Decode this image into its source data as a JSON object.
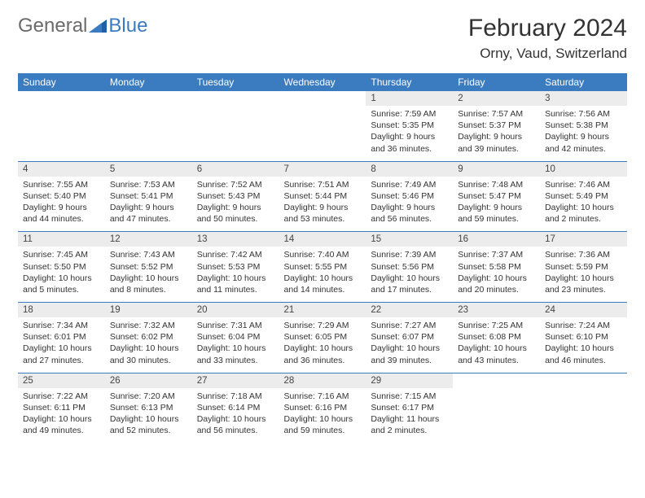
{
  "logo": {
    "text1": "General",
    "text2": "Blue"
  },
  "title": "February 2024",
  "location": "Orny, Vaud, Switzerland",
  "colors": {
    "header_bg": "#3b7bbf",
    "header_text": "#ffffff",
    "daynum_bg": "#ececec",
    "text": "#333333",
    "logo_gray": "#6b6b6b",
    "logo_blue": "#3b7bbf"
  },
  "daynames": [
    "Sunday",
    "Monday",
    "Tuesday",
    "Wednesday",
    "Thursday",
    "Friday",
    "Saturday"
  ],
  "weeks": [
    [
      null,
      null,
      null,
      null,
      {
        "n": "1",
        "sr": "7:59 AM",
        "ss": "5:35 PM",
        "dl": "9 hours and 36 minutes."
      },
      {
        "n": "2",
        "sr": "7:57 AM",
        "ss": "5:37 PM",
        "dl": "9 hours and 39 minutes."
      },
      {
        "n": "3",
        "sr": "7:56 AM",
        "ss": "5:38 PM",
        "dl": "9 hours and 42 minutes."
      }
    ],
    [
      {
        "n": "4",
        "sr": "7:55 AM",
        "ss": "5:40 PM",
        "dl": "9 hours and 44 minutes."
      },
      {
        "n": "5",
        "sr": "7:53 AM",
        "ss": "5:41 PM",
        "dl": "9 hours and 47 minutes."
      },
      {
        "n": "6",
        "sr": "7:52 AM",
        "ss": "5:43 PM",
        "dl": "9 hours and 50 minutes."
      },
      {
        "n": "7",
        "sr": "7:51 AM",
        "ss": "5:44 PM",
        "dl": "9 hours and 53 minutes."
      },
      {
        "n": "8",
        "sr": "7:49 AM",
        "ss": "5:46 PM",
        "dl": "9 hours and 56 minutes."
      },
      {
        "n": "9",
        "sr": "7:48 AM",
        "ss": "5:47 PM",
        "dl": "9 hours and 59 minutes."
      },
      {
        "n": "10",
        "sr": "7:46 AM",
        "ss": "5:49 PM",
        "dl": "10 hours and 2 minutes."
      }
    ],
    [
      {
        "n": "11",
        "sr": "7:45 AM",
        "ss": "5:50 PM",
        "dl": "10 hours and 5 minutes."
      },
      {
        "n": "12",
        "sr": "7:43 AM",
        "ss": "5:52 PM",
        "dl": "10 hours and 8 minutes."
      },
      {
        "n": "13",
        "sr": "7:42 AM",
        "ss": "5:53 PM",
        "dl": "10 hours and 11 minutes."
      },
      {
        "n": "14",
        "sr": "7:40 AM",
        "ss": "5:55 PM",
        "dl": "10 hours and 14 minutes."
      },
      {
        "n": "15",
        "sr": "7:39 AM",
        "ss": "5:56 PM",
        "dl": "10 hours and 17 minutes."
      },
      {
        "n": "16",
        "sr": "7:37 AM",
        "ss": "5:58 PM",
        "dl": "10 hours and 20 minutes."
      },
      {
        "n": "17",
        "sr": "7:36 AM",
        "ss": "5:59 PM",
        "dl": "10 hours and 23 minutes."
      }
    ],
    [
      {
        "n": "18",
        "sr": "7:34 AM",
        "ss": "6:01 PM",
        "dl": "10 hours and 27 minutes."
      },
      {
        "n": "19",
        "sr": "7:32 AM",
        "ss": "6:02 PM",
        "dl": "10 hours and 30 minutes."
      },
      {
        "n": "20",
        "sr": "7:31 AM",
        "ss": "6:04 PM",
        "dl": "10 hours and 33 minutes."
      },
      {
        "n": "21",
        "sr": "7:29 AM",
        "ss": "6:05 PM",
        "dl": "10 hours and 36 minutes."
      },
      {
        "n": "22",
        "sr": "7:27 AM",
        "ss": "6:07 PM",
        "dl": "10 hours and 39 minutes."
      },
      {
        "n": "23",
        "sr": "7:25 AM",
        "ss": "6:08 PM",
        "dl": "10 hours and 43 minutes."
      },
      {
        "n": "24",
        "sr": "7:24 AM",
        "ss": "6:10 PM",
        "dl": "10 hours and 46 minutes."
      }
    ],
    [
      {
        "n": "25",
        "sr": "7:22 AM",
        "ss": "6:11 PM",
        "dl": "10 hours and 49 minutes."
      },
      {
        "n": "26",
        "sr": "7:20 AM",
        "ss": "6:13 PM",
        "dl": "10 hours and 52 minutes."
      },
      {
        "n": "27",
        "sr": "7:18 AM",
        "ss": "6:14 PM",
        "dl": "10 hours and 56 minutes."
      },
      {
        "n": "28",
        "sr": "7:16 AM",
        "ss": "6:16 PM",
        "dl": "10 hours and 59 minutes."
      },
      {
        "n": "29",
        "sr": "7:15 AM",
        "ss": "6:17 PM",
        "dl": "11 hours and 2 minutes."
      },
      null,
      null
    ]
  ],
  "labels": {
    "sunrise": "Sunrise: ",
    "sunset": "Sunset: ",
    "daylight": "Daylight: "
  }
}
